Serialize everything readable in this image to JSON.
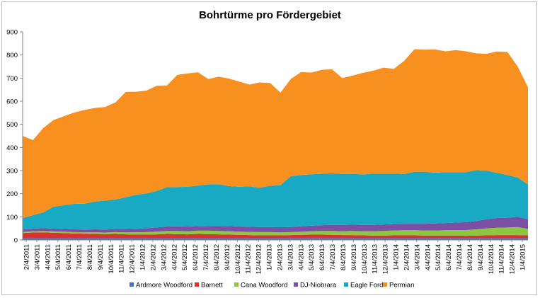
{
  "chart_data": {
    "type": "area",
    "stacked": true,
    "title": "Bohrtürme pro Fördergebiet",
    "xlabel": "",
    "ylabel": "",
    "ylim": [
      0,
      900
    ],
    "y_ticks": [
      0,
      100,
      200,
      300,
      400,
      500,
      600,
      700,
      800,
      900
    ],
    "x_tick_labels": [
      "2/4/2011",
      "3/4/2011",
      "4/4/2011",
      "5/4/2011",
      "6/4/2011",
      "7/4/2011",
      "8/4/2011",
      "9/4/2011",
      "10/4/2011",
      "11/4/2011",
      "12/4/2011",
      "1/4/2012",
      "2/4/2012",
      "3/4/2012",
      "4/4/2012",
      "5/4/2012",
      "6/4/2012",
      "7/4/2012",
      "8/4/2012",
      "9/4/2012",
      "10/4/2012",
      "11/4/2012",
      "12/4/2012",
      "1/4/2013",
      "2/4/2013",
      "3/4/2013",
      "4/4/2013",
      "5/4/2013",
      "6/4/2013",
      "7/4/2013",
      "8/4/2013",
      "9/4/2013",
      "10/4/2013",
      "11/4/2013",
      "12/4/2013",
      "1/4/2014",
      "2/4/2014",
      "3/4/2014",
      "4/4/2014",
      "5/4/2014",
      "6/4/2014",
      "7/4/2014",
      "8/4/2014",
      "9/4/2014",
      "10/4/2014",
      "11/4/2014",
      "12/4/2014",
      "1/4/2015"
    ],
    "x": [
      "2011-01",
      "2011-02",
      "2011-03",
      "2011-04",
      "2011-05",
      "2011-06",
      "2011-07",
      "2011-08",
      "2011-09",
      "2011-10",
      "2011-11",
      "2011-12",
      "2012-01",
      "2012-02",
      "2012-03",
      "2012-04",
      "2012-05",
      "2012-06",
      "2012-07",
      "2012-08",
      "2012-09",
      "2012-10",
      "2012-11",
      "2012-12",
      "2013-01",
      "2013-02",
      "2013-03",
      "2013-04",
      "2013-05",
      "2013-06",
      "2013-07",
      "2013-08",
      "2013-09",
      "2013-10",
      "2013-11",
      "2013-12",
      "2014-01",
      "2014-02",
      "2014-03",
      "2014-04",
      "2014-05",
      "2014-06",
      "2014-07",
      "2014-08",
      "2014-09",
      "2014-10",
      "2014-11",
      "2014-12",
      "2015-01",
      "2015-02"
    ],
    "grid": false,
    "legend_position": "bottom",
    "series": [
      {
        "name": "Ardmore Woodford",
        "color": "#4472C4",
        "values": [
          8,
          8,
          8,
          8,
          8,
          8,
          8,
          8,
          8,
          8,
          8,
          8,
          8,
          8,
          8,
          8,
          8,
          8,
          8,
          8,
          8,
          8,
          8,
          8,
          8,
          8,
          8,
          8,
          8,
          8,
          8,
          8,
          8,
          8,
          8,
          8,
          8,
          8,
          8,
          8,
          8,
          8,
          8,
          8,
          8,
          8,
          8,
          8,
          8,
          8
        ]
      },
      {
        "name": "Barnett",
        "color": "#D9322F",
        "values": [
          22,
          24,
          25,
          23,
          22,
          20,
          19,
          18,
          17,
          18,
          16,
          15,
          15,
          16,
          18,
          17,
          16,
          18,
          17,
          16,
          15,
          14,
          13,
          12,
          12,
          12,
          13,
          14,
          15,
          15,
          14,
          13,
          13,
          12,
          11,
          11,
          12,
          12,
          12,
          11,
          11,
          11,
          11,
          10,
          11,
          12,
          13,
          13,
          13,
          12
        ]
      },
      {
        "name": "Cana Woodford",
        "color": "#8DC63F",
        "values": [
          5,
          6,
          6,
          6,
          6,
          6,
          6,
          7,
          7,
          8,
          9,
          10,
          11,
          12,
          13,
          14,
          14,
          14,
          15,
          15,
          15,
          14,
          14,
          14,
          14,
          13,
          13,
          14,
          15,
          16,
          17,
          17,
          18,
          18,
          19,
          20,
          21,
          22,
          22,
          22,
          22,
          23,
          24,
          25,
          27,
          30,
          32,
          33,
          35,
          28
        ]
      },
      {
        "name": "DJ-Niobrara",
        "color": "#7B4FA3",
        "values": [
          10,
          11,
          12,
          12,
          12,
          12,
          12,
          13,
          13,
          13,
          14,
          15,
          17,
          18,
          19,
          20,
          20,
          20,
          21,
          22,
          22,
          22,
          22,
          22,
          22,
          22,
          22,
          23,
          24,
          25,
          26,
          27,
          27,
          27,
          27,
          28,
          28,
          28,
          28,
          29,
          30,
          31,
          32,
          34,
          36,
          40,
          42,
          42,
          44,
          42
        ]
      },
      {
        "name": "Eagle Ford",
        "color": "#18A9C4",
        "values": [
          50,
          58,
          68,
          95,
          102,
          110,
          112,
          120,
          125,
          128,
          138,
          148,
          150,
          158,
          170,
          170,
          172,
          175,
          180,
          180,
          173,
          172,
          175,
          170,
          178,
          182,
          220,
          222,
          222,
          222,
          223,
          220,
          220,
          218,
          222,
          220,
          218,
          215,
          225,
          225,
          220,
          220,
          218,
          216,
          220,
          210,
          195,
          185,
          170,
          150
        ]
      },
      {
        "name": "Permian",
        "color": "#F7901E",
        "values": [
          355,
          325,
          365,
          375,
          385,
          395,
          405,
          405,
          405,
          420,
          455,
          445,
          445,
          455,
          440,
          485,
          490,
          490,
          455,
          465,
          465,
          455,
          440,
          455,
          445,
          400,
          420,
          445,
          440,
          450,
          450,
          415,
          425,
          440,
          445,
          458,
          453,
          490,
          530,
          528,
          533,
          523,
          528,
          523,
          505,
          505,
          525,
          532,
          480,
          420
        ]
      }
    ]
  }
}
